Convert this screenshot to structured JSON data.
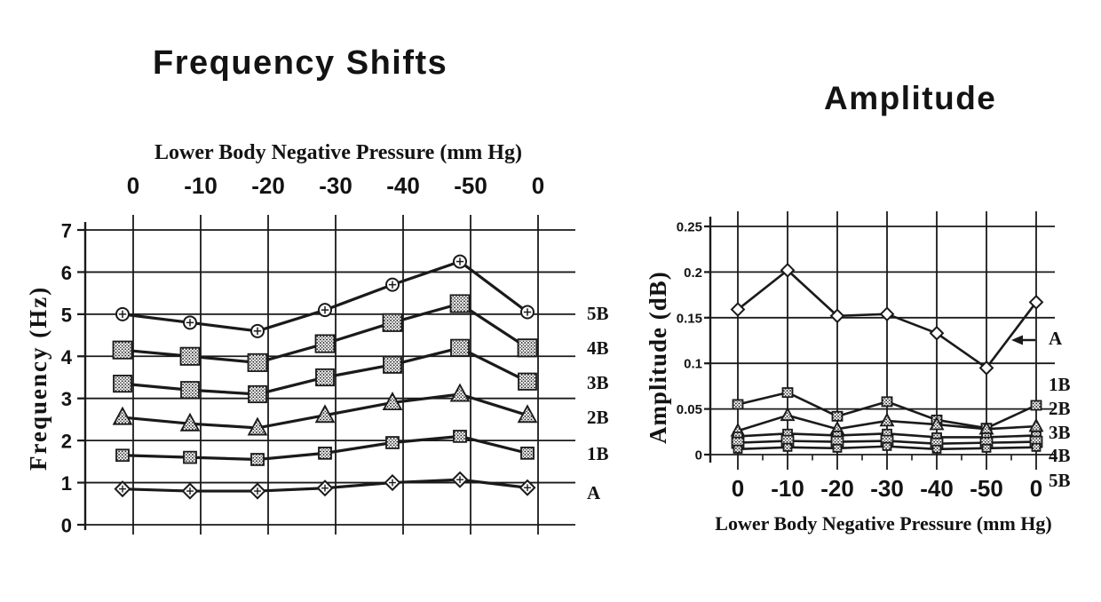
{
  "figure": {
    "background": "#ffffff",
    "ink": "#1a1a1a",
    "text_color": "#131313"
  },
  "chart_data": [
    {
      "type": "line",
      "title": "Frequency Shifts",
      "xlabel": "Lower Body Negative Pressure (mm Hg)",
      "ylabel": "Frequency (Hz)",
      "x_axis_position": "top",
      "categories": [
        "0",
        "-10",
        "-20",
        "-30",
        "-40",
        "-50",
        "0"
      ],
      "ylim": [
        0,
        7
      ],
      "yticks": [
        "0",
        "1",
        "2",
        "3",
        "4",
        "5",
        "6",
        "7"
      ],
      "grid": true,
      "series_label_position": "right",
      "series": [
        {
          "name": "5B",
          "marker": "circle-cross",
          "values": [
            5.0,
            4.8,
            4.6,
            5.1,
            5.7,
            6.25,
            5.05
          ]
        },
        {
          "name": "4B",
          "marker": "speckled-square-large",
          "values": [
            4.15,
            4.0,
            3.85,
            4.3,
            4.8,
            5.25,
            4.2
          ]
        },
        {
          "name": "3B",
          "marker": "speckled-square-large",
          "values": [
            3.35,
            3.2,
            3.1,
            3.5,
            3.8,
            4.2,
            3.4
          ]
        },
        {
          "name": "2B",
          "marker": "speckled-triangle",
          "values": [
            2.55,
            2.4,
            2.3,
            2.6,
            2.9,
            3.1,
            2.6
          ]
        },
        {
          "name": "1B",
          "marker": "speckled-square-small",
          "values": [
            1.65,
            1.6,
            1.55,
            1.7,
            1.95,
            2.1,
            1.7
          ]
        },
        {
          "name": "A",
          "marker": "diamond-cross",
          "values": [
            0.85,
            0.8,
            0.8,
            0.87,
            1.0,
            1.07,
            0.88
          ]
        }
      ]
    },
    {
      "type": "line",
      "title": "Amplitude",
      "xlabel": "Lower Body Negative Pressure (mm Hg)",
      "ylabel": "Amplitude (dB)",
      "x_axis_position": "bottom",
      "categories": [
        "0",
        "-10",
        "-20",
        "-30",
        "-40",
        "-50",
        "0"
      ],
      "ylim": [
        0,
        0.25
      ],
      "yticks": [
        "0",
        "0.05",
        "0.1",
        "0.15",
        "0.2",
        "0.25"
      ],
      "grid": true,
      "series_label_position": "right",
      "annotation": {
        "label": "A",
        "style": "arrow-pointing-left-at-series-A"
      },
      "series": [
        {
          "name": "A",
          "marker": "diamond",
          "values": [
            0.159,
            0.202,
            0.152,
            0.154,
            0.133,
            0.095,
            0.167
          ]
        },
        {
          "name": "1B",
          "marker": "speckled-square",
          "values": [
            0.055,
            0.068,
            0.042,
            0.058,
            0.038,
            0.029,
            0.054
          ]
        },
        {
          "name": "2B",
          "marker": "speckled-triangle",
          "values": [
            0.026,
            0.043,
            0.028,
            0.037,
            0.033,
            0.028,
            0.031
          ]
        },
        {
          "name": "3B",
          "marker": "speckled-square",
          "values": [
            0.02,
            0.023,
            0.021,
            0.023,
            0.019,
            0.019,
            0.021
          ]
        },
        {
          "name": "4B",
          "marker": "speckled-square",
          "values": [
            0.013,
            0.015,
            0.014,
            0.015,
            0.012,
            0.013,
            0.014
          ]
        },
        {
          "name": "5B",
          "marker": "speckled-square",
          "values": [
            0.006,
            0.008,
            0.007,
            0.009,
            0.006,
            0.007,
            0.008
          ]
        }
      ]
    }
  ]
}
